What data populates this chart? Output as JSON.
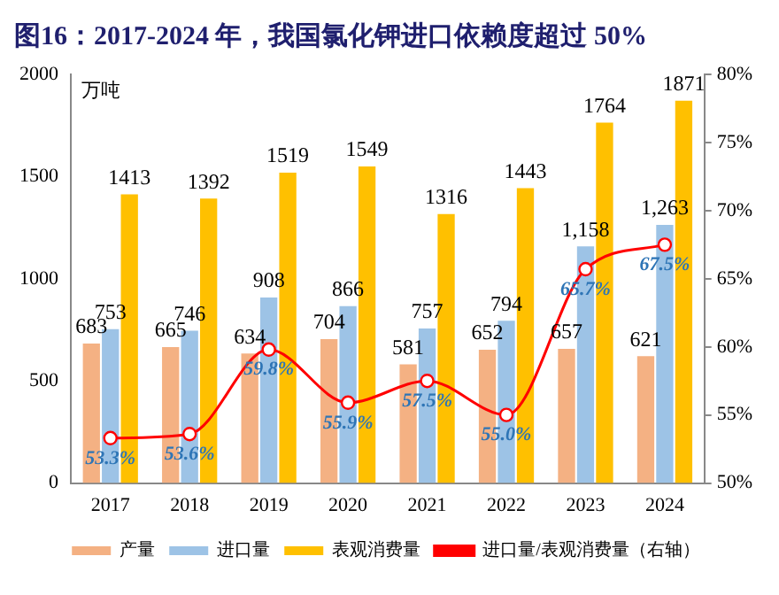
{
  "chart_data": {
    "type": "bar",
    "title": "图16：2017-2024 年，我国氯化钾进口依赖度超过 50%",
    "ylabel": "万吨",
    "categories": [
      "2017",
      "2018",
      "2019",
      "2020",
      "2021",
      "2022",
      "2023",
      "2024"
    ],
    "series": [
      {
        "name": "产量",
        "color": "#f4b183",
        "values": [
          683,
          665,
          634,
          704,
          581,
          652,
          657,
          621
        ],
        "value_labels": [
          "683",
          "665",
          "634",
          "704",
          "581",
          "652",
          "657",
          "621"
        ]
      },
      {
        "name": "进口量",
        "color": "#9dc3e6",
        "values": [
          753,
          746,
          908,
          866,
          757,
          794,
          1158,
          1263
        ],
        "value_labels": [
          "753",
          "746",
          "908",
          "866",
          "757",
          "794",
          "1,158",
          "1,263"
        ]
      },
      {
        "name": "表观消费量",
        "color": "#ffc000",
        "values": [
          1413,
          1392,
          1519,
          1549,
          1316,
          1443,
          1764,
          1871
        ],
        "value_labels": [
          "1413",
          "1392",
          "1519",
          "1549",
          "1316",
          "1443",
          "1764",
          "1871"
        ]
      },
      {
        "name": "进口量/表观消费量（右轴）",
        "type": "line",
        "axis": "y2",
        "color": "#ff0000",
        "marker": "circle",
        "values": [
          53.3,
          53.6,
          59.8,
          55.9,
          57.5,
          55.0,
          65.7,
          67.5
        ],
        "value_labels": [
          "53.3%",
          "53.6%",
          "59.8%",
          "55.9%",
          "57.5%",
          "55.0%",
          "65.7%",
          "67.5%"
        ]
      }
    ],
    "ylim": [
      0,
      2000
    ],
    "yticks": [
      0,
      500,
      1000,
      1500,
      2000
    ],
    "y2lim": [
      50,
      80
    ],
    "y2ticks": [
      {
        "value": 50,
        "label": "50%"
      },
      {
        "value": 55,
        "label": "55%"
      },
      {
        "value": 60,
        "label": "60%"
      },
      {
        "value": 65,
        "label": "65%"
      },
      {
        "value": 70,
        "label": "70%"
      },
      {
        "value": 75,
        "label": "75%"
      },
      {
        "value": 80,
        "label": "80%"
      }
    ],
    "legend": "bottom",
    "grid": false
  }
}
